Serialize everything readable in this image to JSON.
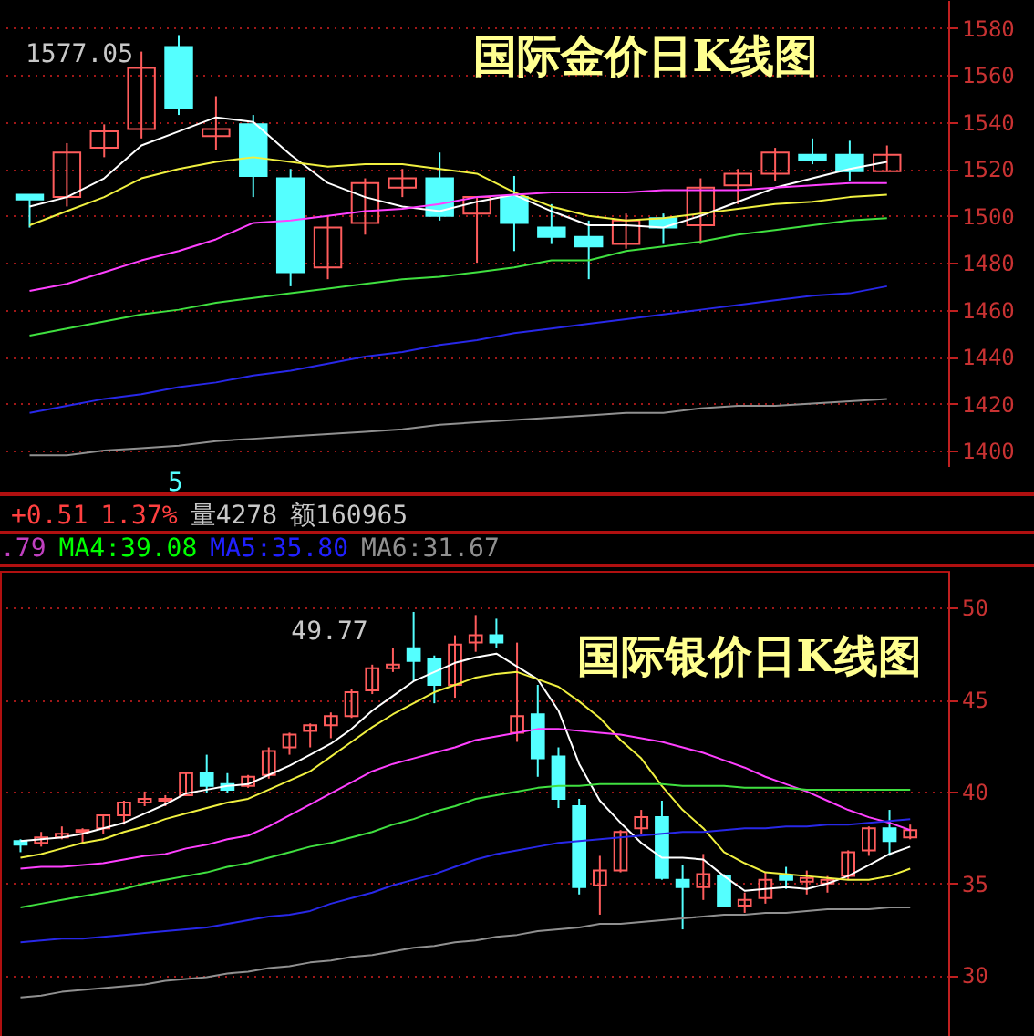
{
  "chart_data": [
    {
      "type": "candlestick",
      "title": "国际金价日K线图",
      "categories": [
        null,
        null,
        null,
        null,
        null,
        null,
        null,
        null,
        null,
        null,
        null,
        null,
        null,
        null,
        null,
        null,
        null,
        null,
        null,
        null,
        null,
        null,
        null,
        null
      ],
      "ohlc": [
        [
          1509,
          1509,
          1495,
          1507
        ],
        [
          1508,
          1531,
          1504,
          1527
        ],
        [
          1529,
          1539,
          1525,
          1536
        ],
        [
          1537,
          1570,
          1533,
          1563
        ],
        [
          1572,
          1577.05,
          1543,
          1546
        ],
        [
          1534,
          1551,
          1528,
          1537
        ],
        [
          1539,
          1543,
          1508,
          1517
        ],
        [
          1516,
          1520,
          1470,
          1476
        ],
        [
          1478,
          1500,
          1473,
          1495
        ],
        [
          1497,
          1516,
          1492,
          1514
        ],
        [
          1512,
          1520,
          1508,
          1516
        ],
        [
          1516,
          1527,
          1498,
          1500
        ],
        [
          1501,
          1508,
          1480,
          1508
        ],
        [
          1508,
          1517,
          1485,
          1497
        ],
        [
          1495,
          1505,
          1488,
          1491
        ],
        [
          1491,
          1498,
          1473,
          1487
        ],
        [
          1488,
          1501,
          1486,
          1498
        ],
        [
          1499,
          1501,
          1488,
          1495
        ],
        [
          1496,
          1516,
          1488,
          1512
        ],
        [
          1513,
          1520,
          1505,
          1518
        ],
        [
          1518,
          1529,
          1515,
          1527
        ],
        [
          1526,
          1533,
          1522,
          1524
        ],
        [
          1526,
          1532,
          1515,
          1519
        ],
        [
          1519,
          1530,
          1519,
          1526
        ]
      ],
      "series": [
        {
          "type": "line",
          "color": "#ffffff",
          "values": [
            1504,
            1508,
            1516,
            1530,
            1536,
            1542,
            1540,
            1526,
            1514,
            1508,
            1504,
            1502,
            1506,
            1509,
            1502,
            1496,
            1496,
            1495,
            1500,
            1506,
            1512,
            1516,
            1520,
            1523
          ]
        },
        {
          "type": "line",
          "color": "#f0f040",
          "values": [
            1496,
            1502,
            1508,
            1516,
            1520,
            1523,
            1525,
            1523,
            1521,
            1522,
            1522,
            1520,
            1518,
            1510,
            1504,
            1500,
            1498,
            1499,
            1501,
            1503,
            1505,
            1506,
            1508,
            1509
          ]
        },
        {
          "type": "line",
          "color": "#ff40ff",
          "values": [
            1468,
            1471,
            1476,
            1481,
            1485,
            1490,
            1497,
            1498,
            1500,
            1502,
            1503,
            1505,
            1508,
            1509,
            1510,
            1510,
            1510,
            1511,
            1511,
            1511,
            1512,
            1513,
            1514,
            1514
          ]
        },
        {
          "type": "line",
          "color": "#40e040",
          "values": [
            1449,
            1452,
            1455,
            1458,
            1460,
            1463,
            1465,
            1467,
            1469,
            1471,
            1473,
            1474,
            1476,
            1478,
            1481,
            1481,
            1485,
            1487,
            1489,
            1492,
            1494,
            1496,
            1498,
            1499
          ]
        },
        {
          "type": "line",
          "color": "#2828e8",
          "values": [
            1416,
            1419,
            1422,
            1424,
            1427,
            1429,
            1432,
            1434,
            1437,
            1440,
            1442,
            1445,
            1447,
            1450,
            1452,
            1454,
            1456,
            1458,
            1460,
            1462,
            1464,
            1466,
            1467,
            1470
          ]
        },
        {
          "type": "line",
          "color": "#909090",
          "values": [
            1398,
            1398,
            1400,
            1401,
            1402,
            1404,
            1405,
            1406,
            1407,
            1408,
            1409,
            1411,
            1412,
            1413,
            1414,
            1415,
            1416,
            1416,
            1418,
            1419,
            1419,
            1420,
            1421,
            1422
          ]
        }
      ],
      "ylim": [
        1393,
        1592
      ],
      "yticks": [
        1400,
        1420,
        1440,
        1460,
        1480,
        1500,
        1520,
        1540,
        1560,
        1580
      ],
      "grid": "y",
      "tick_labels": "y",
      "annotations": [
        "1577.05",
        "5"
      ]
    },
    {
      "type": "candlestick",
      "title": "国际银价日K线图",
      "categories": [
        null,
        null,
        null,
        null,
        null,
        null,
        null,
        null,
        null,
        null,
        null,
        null,
        null,
        null,
        null,
        null,
        null,
        null,
        null,
        null,
        null,
        null,
        null,
        null,
        null,
        null,
        null,
        null,
        null,
        null,
        null,
        null,
        null,
        null,
        null,
        null,
        null,
        null,
        null,
        null,
        null,
        null,
        null,
        null
      ],
      "ohlc": [
        [
          37.3,
          37.4,
          36.7,
          37.1
        ],
        [
          37.2,
          37.8,
          37.0,
          37.5
        ],
        [
          37.5,
          38.1,
          37.4,
          37.7
        ],
        [
          37.8,
          38.0,
          37.2,
          37.9
        ],
        [
          38.0,
          38.7,
          37.7,
          38.7
        ],
        [
          38.7,
          39.5,
          38.2,
          39.4
        ],
        [
          39.4,
          40.0,
          39.2,
          39.6
        ],
        [
          39.5,
          39.8,
          39.2,
          39.6
        ],
        [
          39.8,
          41.0,
          39.8,
          41.0
        ],
        [
          41.0,
          42.0,
          39.9,
          40.3
        ],
        [
          40.4,
          41.0,
          39.9,
          40.1
        ],
        [
          40.3,
          40.9,
          40.2,
          40.8
        ],
        [
          40.9,
          42.4,
          40.7,
          42.2
        ],
        [
          42.4,
          43.2,
          42.0,
          43.1
        ],
        [
          43.3,
          43.7,
          42.4,
          43.6
        ],
        [
          43.6,
          44.3,
          42.9,
          44.1
        ],
        [
          44.1,
          45.6,
          44.0,
          45.4
        ],
        [
          45.5,
          46.9,
          45.3,
          46.7
        ],
        [
          46.7,
          47.8,
          46.5,
          46.9
        ],
        [
          47.8,
          49.77,
          46.0,
          47.1
        ],
        [
          47.2,
          47.4,
          44.8,
          45.8
        ],
        [
          45.8,
          48.5,
          45.1,
          48.0
        ],
        [
          48.1,
          49.6,
          47.6,
          48.5
        ],
        [
          48.5,
          49.4,
          47.8,
          48.1
        ],
        [
          43.2,
          48.1,
          42.7,
          44.1
        ],
        [
          44.2,
          45.8,
          40.8,
          41.8
        ],
        [
          41.9,
          42.4,
          39.1,
          39.6
        ],
        [
          39.2,
          39.6,
          34.4,
          34.8
        ],
        [
          34.9,
          36.5,
          33.3,
          35.7
        ],
        [
          35.7,
          37.9,
          35.6,
          37.8
        ],
        [
          38.0,
          39.0,
          37.7,
          38.6
        ],
        [
          38.6,
          39.5,
          35.2,
          35.3
        ],
        [
          35.2,
          36.0,
          32.5,
          34.8
        ],
        [
          34.8,
          36.6,
          34.1,
          35.5
        ],
        [
          35.4,
          35.5,
          33.7,
          33.8
        ],
        [
          33.8,
          34.5,
          33.4,
          34.1
        ],
        [
          34.2,
          35.6,
          33.9,
          35.2
        ],
        [
          35.4,
          35.9,
          34.7,
          35.2
        ],
        [
          35.1,
          35.7,
          34.4,
          35.3
        ],
        [
          35.0,
          35.4,
          34.5,
          35.2
        ],
        [
          35.4,
          36.8,
          35.2,
          36.7
        ],
        [
          36.8,
          38.1,
          36.5,
          38.0
        ],
        [
          38.0,
          39.0,
          36.5,
          37.3
        ],
        [
          37.5,
          38.2,
          37.4,
          37.9
        ]
      ],
      "series": [
        {
          "type": "line",
          "color": "#ffffff",
          "values": [
            37.3,
            37.4,
            37.5,
            37.7,
            38.0,
            38.3,
            38.8,
            39.3,
            39.9,
            40.1,
            40.3,
            40.4,
            40.9,
            41.4,
            42.0,
            42.6,
            43.4,
            44.4,
            45.2,
            46.0,
            46.5,
            47.0,
            47.3,
            47.5,
            46.8,
            46.1,
            44.4,
            41.5,
            39.5,
            38.3,
            37.2,
            36.4,
            36.4,
            36.3,
            35.4,
            34.6,
            34.7,
            34.8,
            34.7,
            35.0,
            35.4,
            36.0,
            36.6,
            37.0
          ]
        },
        {
          "type": "line",
          "color": "#f0f040",
          "values": [
            36.4,
            36.6,
            36.9,
            37.2,
            37.4,
            37.8,
            38.1,
            38.5,
            38.8,
            39.1,
            39.4,
            39.6,
            40.1,
            40.6,
            41.1,
            41.9,
            42.7,
            43.5,
            44.2,
            44.8,
            45.4,
            45.8,
            46.2,
            46.4,
            46.5,
            46.1,
            45.7,
            44.9,
            44.0,
            42.8,
            41.8,
            40.3,
            39.0,
            38.0,
            36.7,
            36.1,
            35.6,
            35.5,
            35.4,
            35.3,
            35.2,
            35.2,
            35.4,
            35.8
          ]
        },
        {
          "type": "line",
          "color": "#ff40ff",
          "values": [
            35.8,
            35.9,
            35.9,
            36.0,
            36.1,
            36.3,
            36.5,
            36.6,
            36.9,
            37.1,
            37.4,
            37.6,
            38.1,
            38.7,
            39.3,
            39.9,
            40.5,
            41.1,
            41.5,
            41.8,
            42.1,
            42.4,
            42.8,
            43.0,
            43.2,
            43.4,
            43.4,
            43.3,
            43.2,
            43.1,
            42.9,
            42.7,
            42.4,
            42.1,
            41.7,
            41.3,
            40.8,
            40.4,
            40.0,
            39.5,
            39.0,
            38.6,
            38.3,
            37.9
          ]
        },
        {
          "type": "line",
          "color": "#40e040",
          "values": [
            33.7,
            33.9,
            34.1,
            34.3,
            34.5,
            34.7,
            35.0,
            35.2,
            35.4,
            35.6,
            35.9,
            36.1,
            36.4,
            36.7,
            37.0,
            37.2,
            37.5,
            37.8,
            38.2,
            38.5,
            38.9,
            39.2,
            39.6,
            39.8,
            40.0,
            40.2,
            40.3,
            40.3,
            40.4,
            40.4,
            40.4,
            40.4,
            40.3,
            40.3,
            40.3,
            40.2,
            40.2,
            40.2,
            40.1,
            40.1,
            40.1,
            40.1,
            40.1,
            40.1
          ]
        },
        {
          "type": "line",
          "color": "#2828e8",
          "values": [
            31.8,
            31.9,
            32.0,
            32.0,
            32.1,
            32.2,
            32.3,
            32.4,
            32.5,
            32.6,
            32.8,
            33.0,
            33.2,
            33.3,
            33.5,
            33.9,
            34.2,
            34.5,
            34.9,
            35.2,
            35.5,
            35.9,
            36.3,
            36.6,
            36.8,
            37.0,
            37.2,
            37.3,
            37.4,
            37.5,
            37.6,
            37.7,
            37.8,
            37.8,
            37.9,
            38.0,
            38.0,
            38.1,
            38.1,
            38.2,
            38.2,
            38.3,
            38.4,
            38.5
          ]
        },
        {
          "type": "line",
          "color": "#909090",
          "values": [
            28.8,
            28.9,
            29.1,
            29.2,
            29.3,
            29.4,
            29.5,
            29.7,
            29.8,
            29.9,
            30.1,
            30.2,
            30.4,
            30.5,
            30.7,
            30.8,
            31.0,
            31.1,
            31.3,
            31.5,
            31.6,
            31.8,
            31.9,
            32.1,
            32.2,
            32.4,
            32.5,
            32.6,
            32.8,
            32.8,
            32.9,
            33.0,
            33.1,
            33.2,
            33.3,
            33.3,
            33.4,
            33.4,
            33.5,
            33.6,
            33.6,
            33.6,
            33.7,
            33.7
          ]
        }
      ],
      "ylim": [
        26.7,
        52
      ],
      "yticks": [
        30,
        35,
        40,
        45,
        50
      ],
      "grid": "y",
      "tick_labels": "y",
      "annotations": [
        "49.77",
        "+0.51",
        "1.37%",
        "量4278",
        "额160965",
        ".79",
        "MA4:39.08",
        "MA5:35.80",
        "MA6:31.67"
      ]
    }
  ]
}
